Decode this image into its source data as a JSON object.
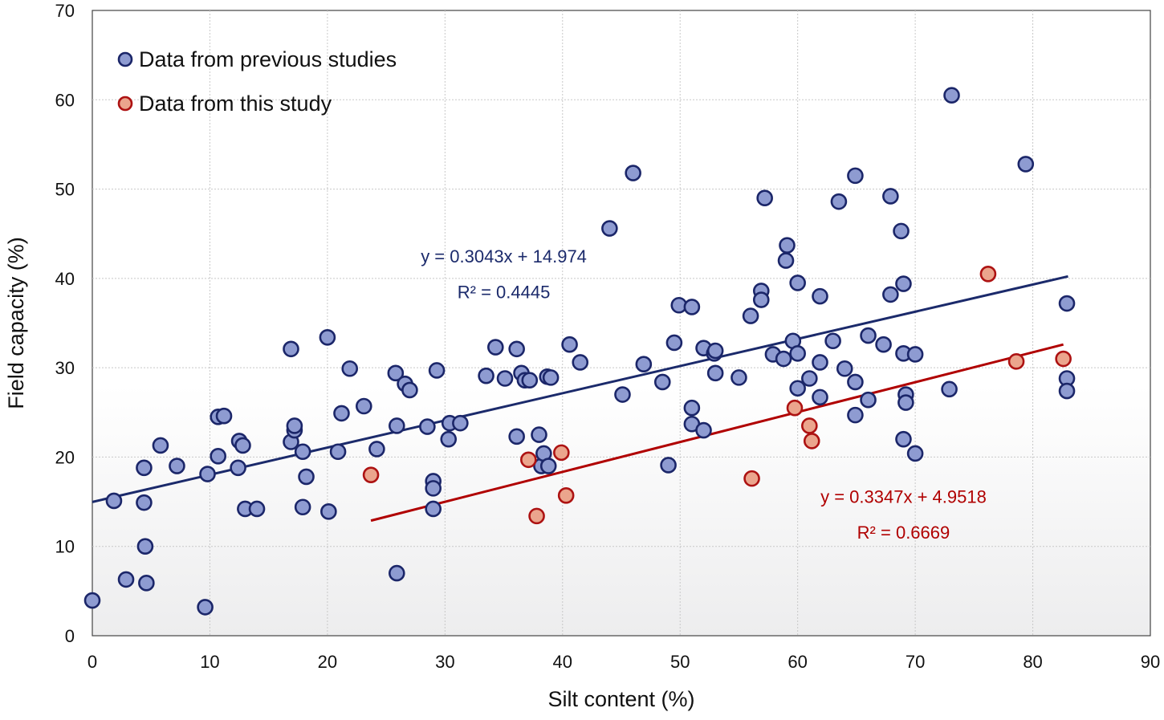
{
  "chart_data": {
    "type": "scatter",
    "title": "",
    "xlabel": "Silt  content (%)",
    "ylabel": "Field capacity (%)",
    "xlim": [
      0,
      90
    ],
    "ylim": [
      0,
      70
    ],
    "xticks": [
      0,
      10,
      20,
      30,
      40,
      50,
      60,
      70,
      80,
      90
    ],
    "yticks": [
      0,
      10,
      20,
      30,
      40,
      50,
      60,
      70
    ],
    "grid": true,
    "legend_position": "top-left",
    "colors": {
      "prev_fill": "#8e9bd1",
      "prev_stroke": "#1b2669",
      "this_fill": "#eba58d",
      "this_stroke": "#ad1212",
      "prev_line": "#1b2a6b",
      "this_line": "#b00000"
    },
    "series": [
      {
        "name": "Data from previous studies",
        "points": [
          [
            0,
            3.95
          ],
          [
            1.84,
            15.1
          ],
          [
            2.87,
            6.3
          ],
          [
            4.4,
            18.8
          ],
          [
            4.4,
            14.9
          ],
          [
            4.5,
            10
          ],
          [
            4.6,
            5.9
          ],
          [
            5.8,
            21.3
          ],
          [
            7.2,
            19
          ],
          [
            9.6,
            3.2
          ],
          [
            9.8,
            18.1
          ],
          [
            10.7,
            20.1
          ],
          [
            10.7,
            24.5
          ],
          [
            11.2,
            24.6
          ],
          [
            12.4,
            18.8
          ],
          [
            12.5,
            21.8
          ],
          [
            12.8,
            21.3
          ],
          [
            13,
            14.2
          ],
          [
            14,
            14.2
          ],
          [
            16.9,
            32.1
          ],
          [
            16.9,
            21.7
          ],
          [
            17.2,
            23
          ],
          [
            17.2,
            23.5
          ],
          [
            17.9,
            20.6
          ],
          [
            17.9,
            14.4
          ],
          [
            18.2,
            17.8
          ],
          [
            20,
            33.4
          ],
          [
            20.1,
            13.9
          ],
          [
            20.9,
            20.6
          ],
          [
            21.2,
            24.9
          ],
          [
            21.9,
            29.9
          ],
          [
            23.1,
            25.7
          ],
          [
            24.2,
            20.9
          ],
          [
            25.8,
            29.4
          ],
          [
            25.9,
            23.5
          ],
          [
            25.9,
            7
          ],
          [
            26.6,
            28.2
          ],
          [
            27,
            27.5
          ],
          [
            28.5,
            23.4
          ],
          [
            29,
            17.3
          ],
          [
            29,
            16.5
          ],
          [
            29,
            14.2
          ],
          [
            29.3,
            29.7
          ],
          [
            30.3,
            22
          ],
          [
            30.4,
            23.8
          ],
          [
            31.3,
            23.8
          ],
          [
            33.5,
            29.1
          ],
          [
            34.3,
            32.3
          ],
          [
            35.1,
            28.8
          ],
          [
            36.1,
            32.1
          ],
          [
            36.1,
            22.3
          ],
          [
            36.5,
            29.4
          ],
          [
            36.8,
            28.6
          ],
          [
            37.2,
            28.6
          ],
          [
            38,
            22.5
          ],
          [
            38.2,
            19
          ],
          [
            38.4,
            20.4
          ],
          [
            38.7,
            29
          ],
          [
            38.8,
            19
          ],
          [
            39,
            28.9
          ],
          [
            40.6,
            32.6
          ],
          [
            41.5,
            30.6
          ],
          [
            44,
            45.6
          ],
          [
            45.1,
            27
          ],
          [
            46,
            51.8
          ],
          [
            46.9,
            30.4
          ],
          [
            48.5,
            28.4
          ],
          [
            49,
            19.1
          ],
          [
            49.5,
            32.8
          ],
          [
            49.9,
            37
          ],
          [
            51,
            36.8
          ],
          [
            51,
            25.5
          ],
          [
            51,
            23.7
          ],
          [
            52,
            23
          ],
          [
            52,
            32.2
          ],
          [
            52.9,
            31.6
          ],
          [
            53,
            31.9
          ],
          [
            53,
            29.4
          ],
          [
            55,
            28.9
          ],
          [
            56,
            35.8
          ],
          [
            56.9,
            38.6
          ],
          [
            56.9,
            37.6
          ],
          [
            57.2,
            49
          ],
          [
            57.9,
            31.5
          ],
          [
            58.8,
            31
          ],
          [
            59,
            42
          ],
          [
            59.1,
            43.7
          ],
          [
            59.6,
            33
          ],
          [
            60,
            39.5
          ],
          [
            60,
            31.6
          ],
          [
            60,
            27.7
          ],
          [
            61,
            28.8
          ],
          [
            61.9,
            30.6
          ],
          [
            61.9,
            26.7
          ],
          [
            61.9,
            38
          ],
          [
            63,
            33
          ],
          [
            63.5,
            48.6
          ],
          [
            64,
            29.9
          ],
          [
            64.9,
            51.5
          ],
          [
            64.9,
            28.4
          ],
          [
            64.9,
            24.7
          ],
          [
            66,
            33.6
          ],
          [
            66,
            26.4
          ],
          [
            67.3,
            32.6
          ],
          [
            67.9,
            49.2
          ],
          [
            67.9,
            38.2
          ],
          [
            68.8,
            45.3
          ],
          [
            69,
            39.4
          ],
          [
            69,
            31.6
          ],
          [
            69,
            22
          ],
          [
            69.2,
            27
          ],
          [
            69.2,
            26.1
          ],
          [
            70,
            31.5
          ],
          [
            70,
            20.4
          ],
          [
            72.9,
            27.6
          ],
          [
            73.1,
            60.5
          ],
          [
            79.4,
            52.8
          ],
          [
            82.9,
            37.2
          ],
          [
            82.9,
            28.8
          ],
          [
            82.9,
            27.4
          ]
        ],
        "trendline": {
          "slope": 0.3043,
          "intercept": 14.974,
          "x_range": [
            0,
            83
          ],
          "equation": "y = 0.3043x + 14.974",
          "r2": "R² = 0.4445"
        }
      },
      {
        "name": "Data from this study",
        "points": [
          [
            23.7,
            18
          ],
          [
            37.1,
            19.7
          ],
          [
            37.8,
            13.4
          ],
          [
            39.9,
            20.5
          ],
          [
            40.3,
            15.7
          ],
          [
            56.1,
            17.6
          ],
          [
            59.75,
            25.5
          ],
          [
            61,
            23.5
          ],
          [
            61.2,
            21.8
          ],
          [
            76.2,
            40.5
          ],
          [
            78.6,
            30.7
          ],
          [
            82.6,
            31
          ]
        ],
        "trendline": {
          "slope": 0.3347,
          "intercept": 4.9518,
          "x_range": [
            23.7,
            82.6
          ],
          "equation": "y = 0.3347x + 4.9518",
          "r2": "R² = 0.6669"
        }
      }
    ]
  }
}
